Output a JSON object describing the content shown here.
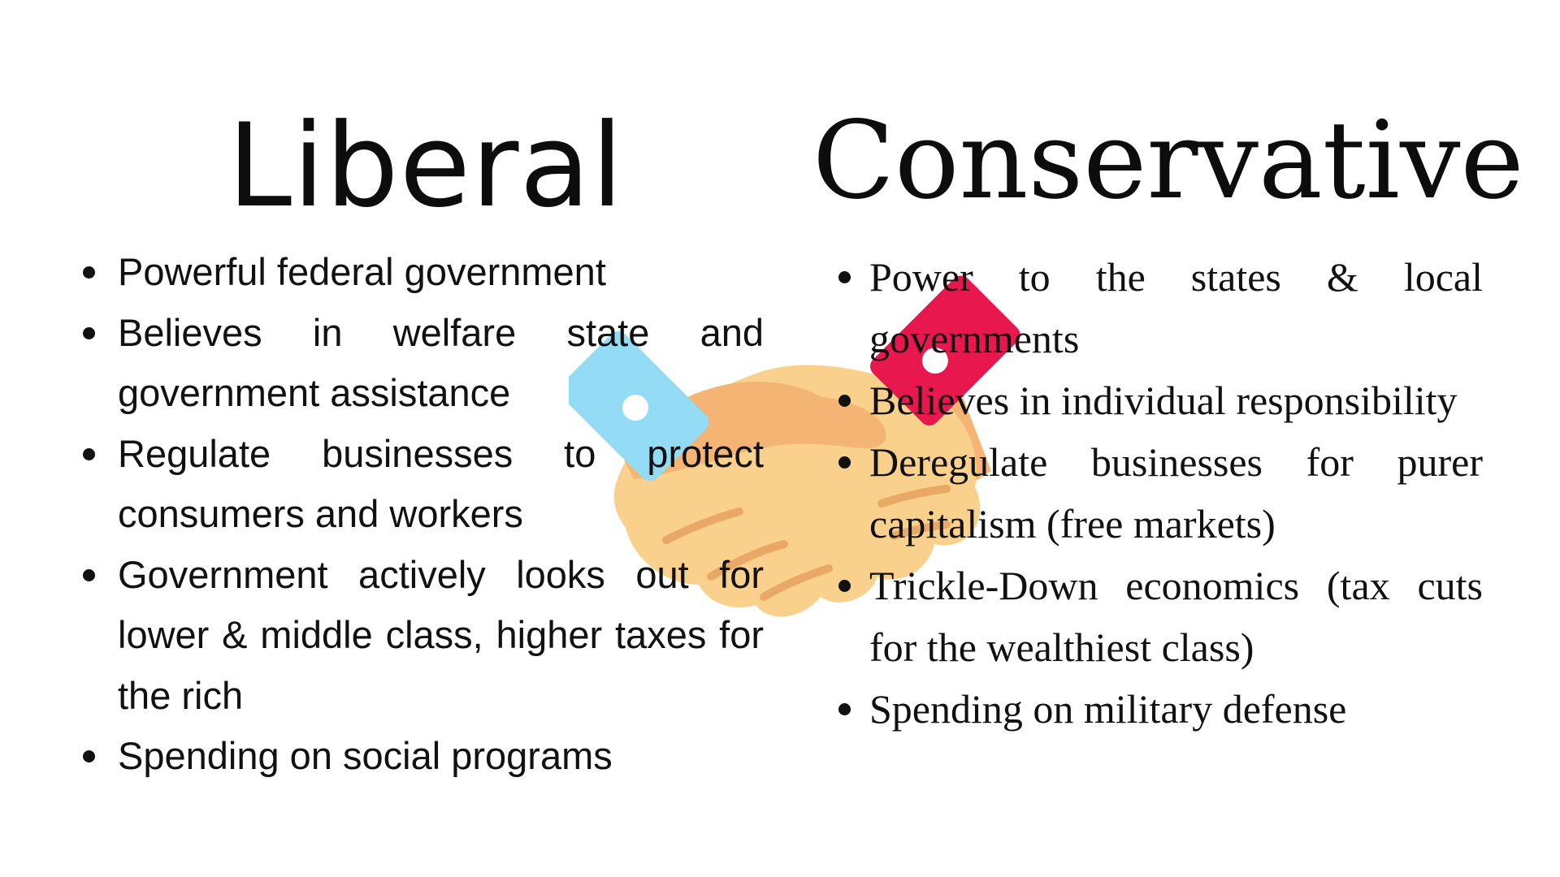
{
  "liberal": {
    "title": "Liberal",
    "color": "#0d0d0d",
    "items": [
      "Powerful federal government",
      "Believes in welfare state and government assistance",
      "Regulate businesses to protect consumers and workers",
      "Government actively looks out for lower & middle class, higher taxes for the rich",
      "Spending on social programs"
    ]
  },
  "conservative": {
    "title": "Conservative",
    "color": "#0d0d0d",
    "items": [
      "Power to the states & local governments",
      "Believes in individual responsibility",
      "Deregulate businesses for purer capitalism (free markets)",
      "Trickle-Down economics (tax cuts for the wealthiest class)",
      "Spending on military defense"
    ]
  },
  "illustration": {
    "icon": "handshake-icon",
    "colors": {
      "left_cuff": "#94dbf5",
      "right_cuff": "#e8174e",
      "skin_light": "#f9d18c",
      "skin_shade": "#f4b574",
      "crease": "#eaa867",
      "cuff_button": "#ffffff"
    }
  }
}
